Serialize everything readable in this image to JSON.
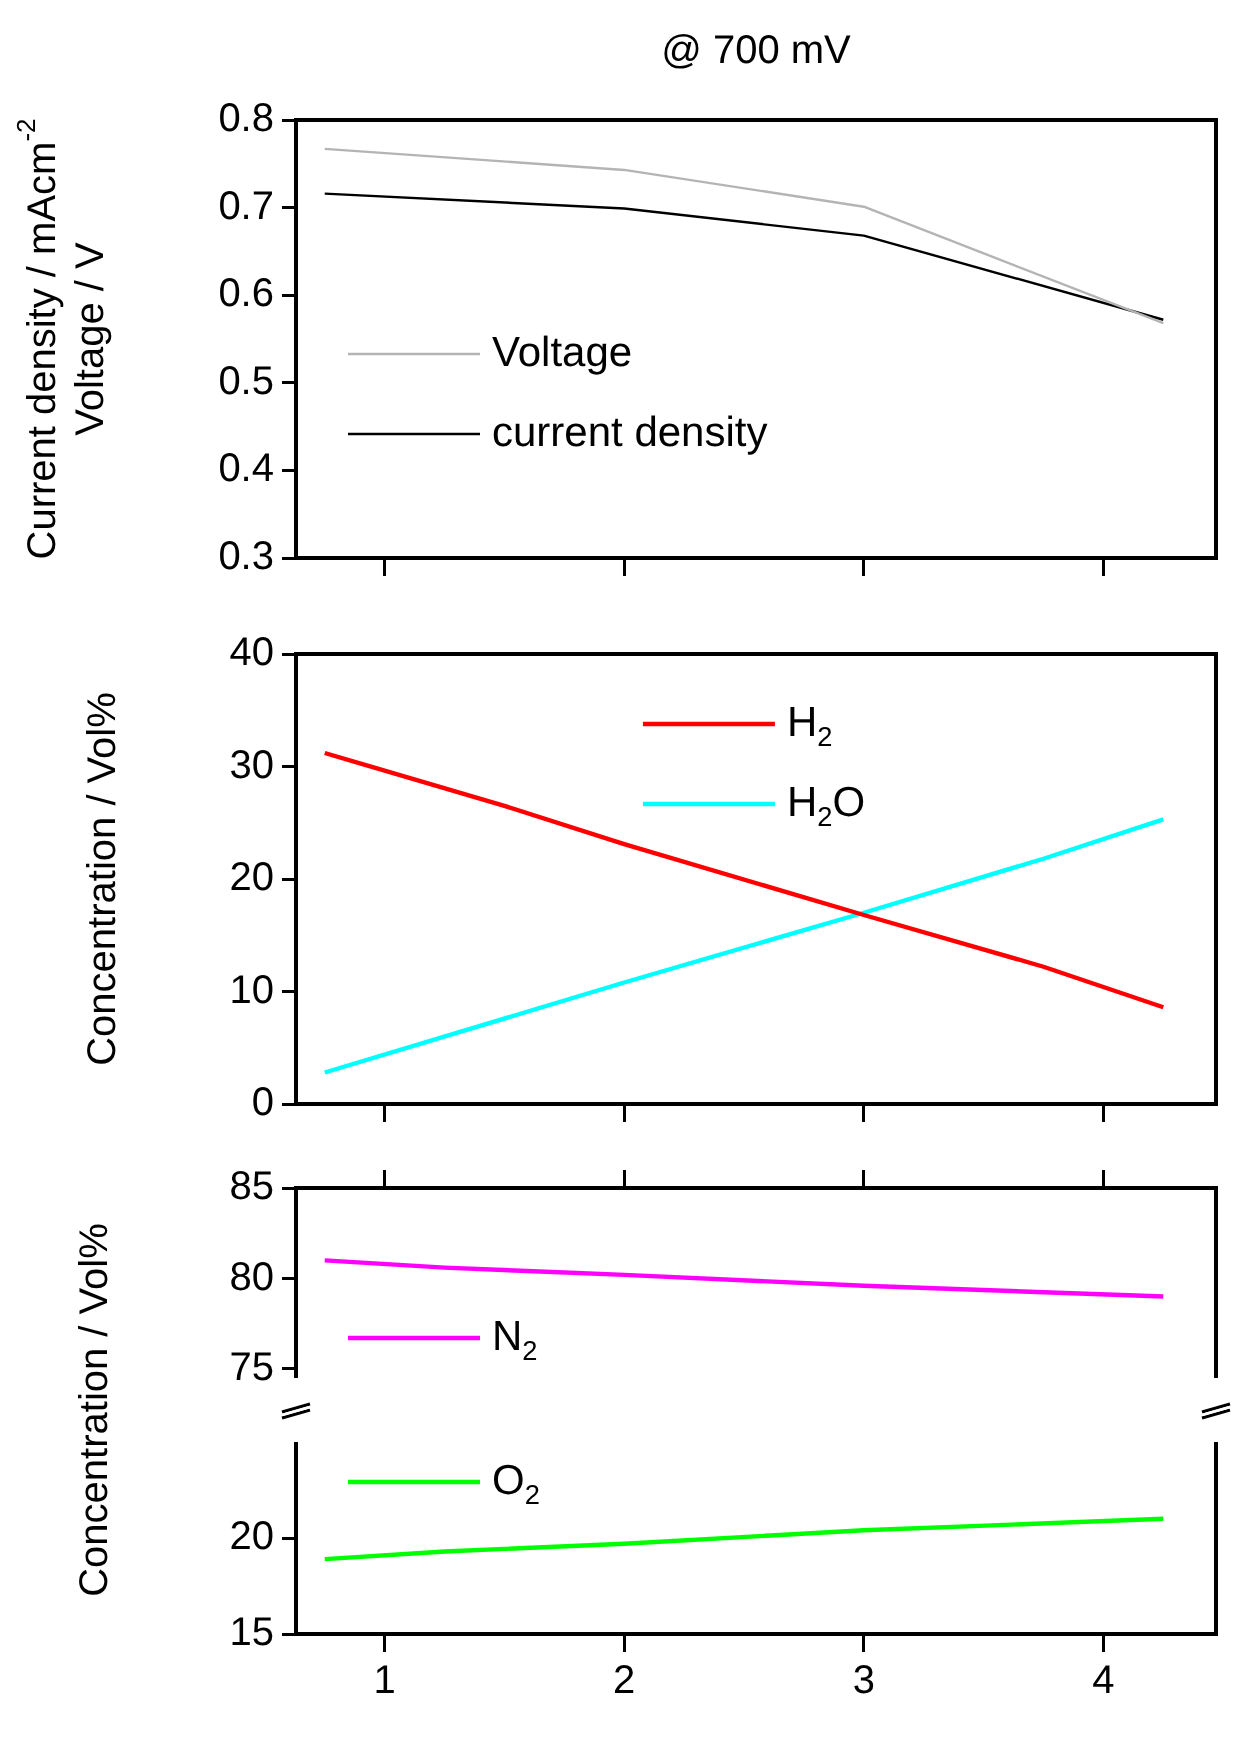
{
  "chart_data": [
    {
      "type": "line",
      "title": "@ 700 mV",
      "ylabel": "Current density / mAcm$^{-2}$\nVoltage / V",
      "xlim": [
        0.63,
        4.47
      ],
      "xticks": [
        1,
        2,
        3,
        4
      ],
      "ylim": [
        0.3,
        0.8
      ],
      "yticks": [
        0.3,
        0.4,
        0.5,
        0.6,
        0.7,
        0.8
      ],
      "tick_labels": "y",
      "legend": "bottom left",
      "series": [
        {
          "name": "Voltage",
          "color": "#b4b4b4",
          "x": [
            0.75,
            2,
            3,
            4.25
          ],
          "values": [
            0.767,
            0.743,
            0.701,
            0.568
          ]
        },
        {
          "name": "current density",
          "color": "#000000",
          "x": [
            0.75,
            2,
            3,
            4.25
          ],
          "values": [
            0.716,
            0.699,
            0.668,
            0.572
          ]
        }
      ]
    },
    {
      "type": "line",
      "ylabel": "Concentration / Vol%",
      "xlim": [
        0.63,
        4.47
      ],
      "xticks": [
        1,
        2,
        3,
        4
      ],
      "ylim": [
        0,
        40
      ],
      "yticks": [
        0,
        10,
        20,
        30,
        40
      ],
      "tick_labels": "y",
      "legend": "top",
      "series": [
        {
          "name": "H$_{2}$",
          "color": "#ff0000",
          "x": [
            0.75,
            1.5,
            2,
            3,
            3.75,
            4.25
          ],
          "values": [
            31.2,
            26.5,
            23.1,
            16.8,
            12.2,
            8.6
          ]
        },
        {
          "name": "H$_{2}$O",
          "color": "#00ffff",
          "x": [
            0.75,
            2,
            3,
            3.75,
            4.25
          ],
          "values": [
            2.8,
            10.8,
            17.0,
            21.8,
            25.3
          ]
        }
      ]
    },
    {
      "type": "line",
      "ylabel": "Concentration / Vol%",
      "xlim": [
        0.63,
        4.47
      ],
      "xticks": [
        1,
        2,
        3,
        4
      ],
      "ylim": [
        74.5,
        85
      ],
      "yticks": [
        75,
        80,
        85
      ],
      "tick_labels": "y",
      "legend": "bottom left",
      "series": [
        {
          "name": "N$_{2}$",
          "color": "#ff00ff",
          "x": [
            0.75,
            1.25,
            2,
            3,
            4.25
          ],
          "values": [
            81.0,
            80.6,
            80.2,
            79.6,
            79.0
          ]
        }
      ]
    },
    {
      "type": "line",
      "xlim": [
        0.63,
        4.47
      ],
      "xticks": [
        1,
        2,
        3,
        4
      ],
      "ylim": [
        15,
        25
      ],
      "yticks": [
        15,
        20
      ],
      "legend": "top left",
      "series": [
        {
          "name": "O$_{2}$",
          "color": "#00ff00",
          "x": [
            0.75,
            1.25,
            2,
            3,
            4.25
          ],
          "values": [
            18.9,
            19.3,
            19.7,
            20.4,
            21.0
          ]
        }
      ]
    }
  ]
}
